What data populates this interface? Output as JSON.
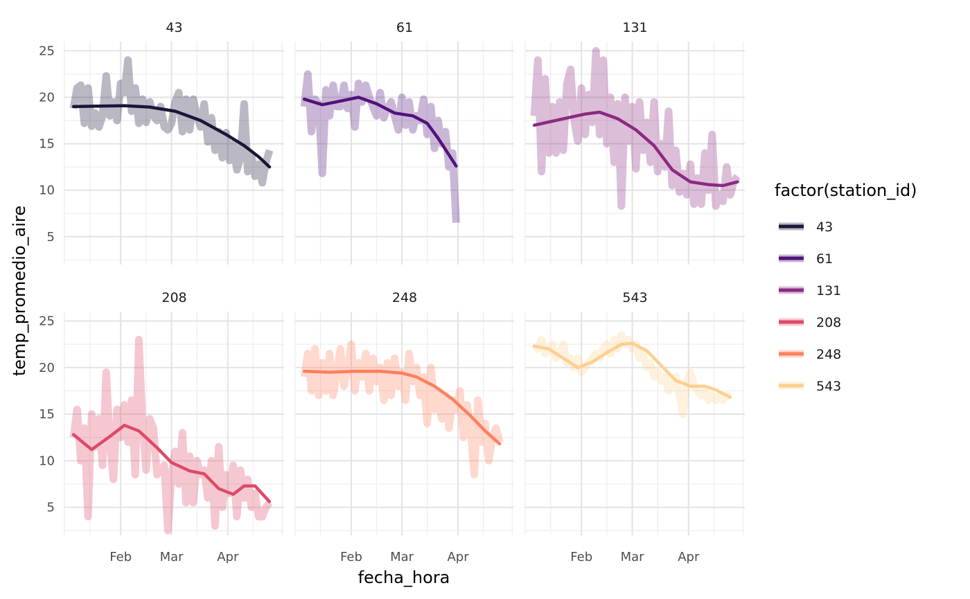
{
  "chart_data": {
    "type": "line",
    "xlabel": "fecha_hora",
    "ylabel": "temp_promedio_aire",
    "x_ticks": [
      "Feb",
      "Mar",
      "Apr"
    ],
    "y_ticks": [
      5,
      10,
      15,
      20,
      25
    ],
    "ylim": [
      2,
      26
    ],
    "grid": true,
    "legend": {
      "title": "factor(station_id)",
      "position": "right",
      "entries": [
        "43",
        "61",
        "131",
        "208",
        "248",
        "543"
      ]
    },
    "series": [
      {
        "name": "43",
        "color": "#1b1538",
        "x": [
          "2023-01-06",
          "2023-01-08",
          "2023-01-10",
          "2023-01-12",
          "2023-01-14",
          "2023-01-16",
          "2023-01-18",
          "2023-01-20",
          "2023-01-22",
          "2023-01-24",
          "2023-01-26",
          "2023-01-28",
          "2023-01-30",
          "2023-02-01",
          "2023-02-03",
          "2023-02-05",
          "2023-02-07",
          "2023-02-09",
          "2023-02-11",
          "2023-02-13",
          "2023-02-15",
          "2023-02-17",
          "2023-02-19",
          "2023-02-21",
          "2023-02-23",
          "2023-02-25",
          "2023-02-27",
          "2023-03-01",
          "2023-03-03",
          "2023-03-05",
          "2023-03-07",
          "2023-03-09",
          "2023-03-11",
          "2023-03-13",
          "2023-03-15",
          "2023-03-17",
          "2023-03-19",
          "2023-03-21",
          "2023-03-23",
          "2023-03-25",
          "2023-03-27",
          "2023-03-29",
          "2023-03-31",
          "2023-04-02",
          "2023-04-04",
          "2023-04-06",
          "2023-04-08",
          "2023-04-10",
          "2023-04-12",
          "2023-04-14",
          "2023-04-16",
          "2023-04-18",
          "2023-04-20",
          "2023-04-22",
          "2023-04-24"
        ],
        "values": [
          18.8,
          21.0,
          21.3,
          17.2,
          21.0,
          16.9,
          18.3,
          16.8,
          18.0,
          22.3,
          18.0,
          19.5,
          17.5,
          21.5,
          20.5,
          24.0,
          18.5,
          21.0,
          17.2,
          19.8,
          17.3,
          19.5,
          18.0,
          17.5,
          19.0,
          16.8,
          16.5,
          17.2,
          19.5,
          20.5,
          16.3,
          19.8,
          16.5,
          19.8,
          18.0,
          16.8,
          19.3,
          15.2,
          17.8,
          14.3,
          16.3,
          13.5,
          16.2,
          13.2,
          15.0,
          12.2,
          13.5,
          19.3,
          12.0,
          13.8,
          11.5,
          12.8,
          10.8,
          13.0,
          14.3
        ],
        "smooth_x": [
          "2023-01-06",
          "2023-01-20",
          "2023-02-03",
          "2023-02-17",
          "2023-03-03",
          "2023-03-17",
          "2023-03-31",
          "2023-04-10",
          "2023-04-18",
          "2023-04-24"
        ],
        "smooth_y": [
          19.0,
          19.05,
          19.1,
          18.95,
          18.5,
          17.5,
          16.0,
          14.8,
          13.6,
          12.5
        ]
      },
      {
        "name": "61",
        "color": "#51127c",
        "x": [
          "2023-01-06",
          "2023-01-08",
          "2023-01-10",
          "2023-01-12",
          "2023-01-14",
          "2023-01-16",
          "2023-01-18",
          "2023-01-20",
          "2023-01-22",
          "2023-01-24",
          "2023-01-26",
          "2023-01-28",
          "2023-01-30",
          "2023-02-01",
          "2023-02-03",
          "2023-02-05",
          "2023-02-07",
          "2023-02-09",
          "2023-02-11",
          "2023-02-13",
          "2023-02-15",
          "2023-02-17",
          "2023-02-19",
          "2023-02-21",
          "2023-02-23",
          "2023-02-25",
          "2023-02-27",
          "2023-03-01",
          "2023-03-03",
          "2023-03-05",
          "2023-03-07",
          "2023-03-09",
          "2023-03-11",
          "2023-03-13",
          "2023-03-15",
          "2023-03-17",
          "2023-03-19",
          "2023-03-21",
          "2023-03-23",
          "2023-03-25",
          "2023-03-27",
          "2023-03-29",
          "2023-03-31"
        ],
        "values": [
          19.0,
          22.5,
          16.3,
          19.8,
          19.3,
          11.8,
          20.8,
          18.0,
          21.3,
          19.0,
          19.0,
          21.3,
          18.8,
          20.3,
          16.8,
          21.5,
          19.5,
          21.3,
          20.0,
          19.0,
          18.0,
          20.5,
          17.8,
          18.8,
          19.5,
          18.0,
          16.5,
          20.0,
          17.0,
          19.5,
          16.5,
          18.0,
          17.5,
          19.8,
          16.0,
          19.0,
          14.5,
          17.5,
          15.0,
          16.3,
          12.5,
          14.0,
          6.5
        ],
        "smooth_x": [
          "2023-01-06",
          "2023-01-16",
          "2023-01-26",
          "2023-02-05",
          "2023-02-15",
          "2023-02-25",
          "2023-03-07",
          "2023-03-15",
          "2023-03-21",
          "2023-03-27",
          "2023-03-31"
        ],
        "smooth_y": [
          19.8,
          19.2,
          19.6,
          20.0,
          19.3,
          18.3,
          18.0,
          17.2,
          15.6,
          13.8,
          12.6
        ]
      },
      {
        "name": "131",
        "color": "#8c2981",
        "x": [
          "2023-01-06",
          "2023-01-08",
          "2023-01-10",
          "2023-01-12",
          "2023-01-14",
          "2023-01-16",
          "2023-01-18",
          "2023-01-20",
          "2023-01-22",
          "2023-01-24",
          "2023-01-26",
          "2023-01-28",
          "2023-01-30",
          "2023-02-01",
          "2023-02-03",
          "2023-02-05",
          "2023-02-07",
          "2023-02-09",
          "2023-02-11",
          "2023-02-13",
          "2023-02-15",
          "2023-02-17",
          "2023-02-19",
          "2023-02-21",
          "2023-02-23",
          "2023-02-25",
          "2023-02-27",
          "2023-03-01",
          "2023-03-03",
          "2023-03-05",
          "2023-03-07",
          "2023-03-09",
          "2023-03-11",
          "2023-03-13",
          "2023-03-15",
          "2023-03-17",
          "2023-03-19",
          "2023-03-21",
          "2023-03-23",
          "2023-03-25",
          "2023-03-27",
          "2023-03-29",
          "2023-03-31",
          "2023-04-02",
          "2023-04-04",
          "2023-04-06",
          "2023-04-08",
          "2023-04-10",
          "2023-04-12",
          "2023-04-14",
          "2023-04-16",
          "2023-04-18",
          "2023-04-20",
          "2023-04-22",
          "2023-04-24",
          "2023-04-26",
          "2023-04-28"
        ],
        "values": [
          18.0,
          24.0,
          12.0,
          22.0,
          14.0,
          19.0,
          14.0,
          19.5,
          14.3,
          21.5,
          23.0,
          17.5,
          15.3,
          21.0,
          16.0,
          20.3,
          17.3,
          25.0,
          16.0,
          24.0,
          15.0,
          20.0,
          13.0,
          19.3,
          8.3,
          20.0,
          15.3,
          19.0,
          12.3,
          19.5,
          14.3,
          17.3,
          13.0,
          19.5,
          12.0,
          15.0,
          12.5,
          18.5,
          10.5,
          14.3,
          9.8,
          11.8,
          9.5,
          12.8,
          8.5,
          11.3,
          8.5,
          14.0,
          10.0,
          16.0,
          8.3,
          9.5,
          8.8,
          12.5,
          9.5,
          11.0,
          11.5
        ],
        "smooth_x": [
          "2023-01-06",
          "2023-01-20",
          "2023-02-03",
          "2023-02-11",
          "2023-02-21",
          "2023-03-03",
          "2023-03-13",
          "2023-03-23",
          "2023-04-02",
          "2023-04-12",
          "2023-04-20",
          "2023-04-28"
        ],
        "smooth_y": [
          17.0,
          17.6,
          18.2,
          18.4,
          17.7,
          16.5,
          14.8,
          12.2,
          10.9,
          10.6,
          10.5,
          10.9
        ]
      },
      {
        "name": "208",
        "color": "#de4968",
        "x": [
          "2023-01-06",
          "2023-01-08",
          "2023-01-10",
          "2023-01-12",
          "2023-01-14",
          "2023-01-16",
          "2023-01-18",
          "2023-01-20",
          "2023-01-22",
          "2023-01-24",
          "2023-01-26",
          "2023-01-28",
          "2023-01-30",
          "2023-02-01",
          "2023-02-03",
          "2023-02-05",
          "2023-02-07",
          "2023-02-09",
          "2023-02-11",
          "2023-02-13",
          "2023-02-15",
          "2023-02-17",
          "2023-02-19",
          "2023-02-21",
          "2023-02-23",
          "2023-02-25",
          "2023-02-27",
          "2023-03-01",
          "2023-03-03",
          "2023-03-05",
          "2023-03-07",
          "2023-03-09",
          "2023-03-11",
          "2023-03-13",
          "2023-03-15",
          "2023-03-17",
          "2023-03-19",
          "2023-03-21",
          "2023-03-23",
          "2023-03-25",
          "2023-03-27",
          "2023-03-29",
          "2023-03-31",
          "2023-04-02",
          "2023-04-04",
          "2023-04-06",
          "2023-04-08",
          "2023-04-10",
          "2023-04-12",
          "2023-04-14",
          "2023-04-16",
          "2023-04-18",
          "2023-04-20",
          "2023-04-22",
          "2023-04-24"
        ],
        "values": [
          12.5,
          15.5,
          10.0,
          13.5,
          4.0,
          15.0,
          11.5,
          14.5,
          9.5,
          19.5,
          12.0,
          8.0,
          15.5,
          12.5,
          16.0,
          12.0,
          16.5,
          8.5,
          23.0,
          14.0,
          9.0,
          14.5,
          13.5,
          8.5,
          9.0,
          9.5,
          2.5,
          8.5,
          11.0,
          7.5,
          13.0,
          5.5,
          10.5,
          5.5,
          10.0,
          8.5,
          9.0,
          6.0,
          10.0,
          3.0,
          11.5,
          5.0,
          8.5,
          6.5,
          9.5,
          4.0,
          9.0,
          6.0,
          8.0,
          5.0,
          6.5,
          4.0,
          4.0,
          5.0,
          5.5
        ],
        "smooth_x": [
          "2023-01-06",
          "2023-01-16",
          "2023-01-26",
          "2023-02-03",
          "2023-02-11",
          "2023-02-21",
          "2023-03-01",
          "2023-03-11",
          "2023-03-19",
          "2023-03-27",
          "2023-04-04",
          "2023-04-10",
          "2023-04-16",
          "2023-04-24"
        ],
        "smooth_y": [
          12.8,
          11.2,
          12.6,
          13.8,
          13.2,
          11.4,
          9.8,
          8.9,
          8.6,
          7.0,
          6.4,
          7.3,
          7.3,
          5.6
        ]
      },
      {
        "name": "248",
        "color": "#fe7f5e",
        "x": [
          "2023-01-06",
          "2023-01-08",
          "2023-01-10",
          "2023-01-12",
          "2023-01-14",
          "2023-01-16",
          "2023-01-18",
          "2023-01-20",
          "2023-01-22",
          "2023-01-24",
          "2023-01-26",
          "2023-01-28",
          "2023-01-30",
          "2023-02-01",
          "2023-02-03",
          "2023-02-05",
          "2023-02-07",
          "2023-02-09",
          "2023-02-11",
          "2023-02-13",
          "2023-02-15",
          "2023-02-17",
          "2023-02-19",
          "2023-02-21",
          "2023-02-23",
          "2023-02-25",
          "2023-02-27",
          "2023-03-01",
          "2023-03-03",
          "2023-03-05",
          "2023-03-07",
          "2023-03-09",
          "2023-03-11",
          "2023-03-13",
          "2023-03-15",
          "2023-03-17",
          "2023-03-19",
          "2023-03-21",
          "2023-03-23",
          "2023-03-25",
          "2023-03-27",
          "2023-03-29",
          "2023-03-31",
          "2023-04-02",
          "2023-04-04",
          "2023-04-06",
          "2023-04-08",
          "2023-04-10",
          "2023-04-12",
          "2023-04-14",
          "2023-04-16",
          "2023-04-18",
          "2023-04-20",
          "2023-04-22",
          "2023-04-24"
        ],
        "values": [
          19.0,
          21.5,
          17.5,
          22.0,
          17.0,
          20.5,
          17.5,
          21.5,
          17.0,
          19.5,
          22.0,
          18.0,
          20.0,
          22.5,
          17.5,
          20.5,
          19.0,
          21.5,
          17.5,
          21.0,
          18.5,
          20.0,
          16.5,
          20.5,
          17.0,
          21.0,
          18.0,
          19.5,
          16.5,
          21.5,
          18.5,
          20.0,
          17.0,
          19.0,
          14.0,
          20.0,
          15.5,
          17.5,
          14.5,
          17.0,
          13.5,
          16.5,
          15.5,
          17.5,
          12.5,
          16.0,
          13.5,
          8.5,
          16.5,
          12.0,
          14.0,
          10.0,
          12.5,
          13.5,
          12.0
        ],
        "smooth_x": [
          "2023-01-06",
          "2023-01-20",
          "2023-02-03",
          "2023-02-17",
          "2023-03-01",
          "2023-03-09",
          "2023-03-19",
          "2023-03-29",
          "2023-04-08",
          "2023-04-16",
          "2023-04-24"
        ],
        "smooth_y": [
          19.6,
          19.5,
          19.6,
          19.6,
          19.4,
          19.0,
          18.0,
          16.6,
          14.8,
          13.2,
          11.8
        ]
      },
      {
        "name": "543",
        "color": "#fdcf8e",
        "x": [
          "2023-01-06",
          "2023-01-08",
          "2023-01-10",
          "2023-01-12",
          "2023-01-14",
          "2023-01-16",
          "2023-01-18",
          "2023-01-20",
          "2023-01-22",
          "2023-01-24",
          "2023-01-26",
          "2023-01-28",
          "2023-01-30",
          "2023-02-01",
          "2023-02-03",
          "2023-02-05",
          "2023-02-07",
          "2023-02-09",
          "2023-02-11",
          "2023-02-13",
          "2023-02-15",
          "2023-02-17",
          "2023-02-19",
          "2023-02-21",
          "2023-02-23",
          "2023-02-25",
          "2023-02-27",
          "2023-03-01",
          "2023-03-03",
          "2023-03-05",
          "2023-03-07",
          "2023-03-09",
          "2023-03-11",
          "2023-03-13",
          "2023-03-15",
          "2023-03-17",
          "2023-03-19",
          "2023-03-21",
          "2023-03-23",
          "2023-03-25",
          "2023-03-27",
          "2023-03-29",
          "2023-03-31",
          "2023-04-02",
          "2023-04-04",
          "2023-04-06",
          "2023-04-08",
          "2023-04-10",
          "2023-04-12",
          "2023-04-14",
          "2023-04-16",
          "2023-04-18",
          "2023-04-20",
          "2023-04-22",
          "2023-04-24"
        ],
        "values": [
          22.5,
          22.0,
          23.0,
          21.5,
          22.0,
          22.5,
          21.0,
          21.5,
          22.5,
          20.5,
          21.0,
          20.0,
          21.0,
          19.5,
          20.0,
          20.5,
          21.0,
          21.5,
          21.0,
          22.0,
          22.5,
          21.5,
          23.0,
          22.0,
          23.5,
          22.5,
          23.0,
          22.0,
          22.5,
          21.0,
          21.5,
          20.0,
          20.5,
          19.0,
          19.5,
          18.5,
          19.0,
          17.5,
          18.0,
          19.0,
          17.0,
          15.0,
          18.5,
          19.5,
          18.0,
          17.5,
          17.0,
          17.5,
          16.5,
          17.0,
          16.5,
          17.0,
          16.5,
          17.0,
          16.8
        ],
        "smooth_x": [
          "2023-01-06",
          "2023-01-14",
          "2023-01-22",
          "2023-01-30",
          "2023-02-07",
          "2023-02-15",
          "2023-02-23",
          "2023-03-01",
          "2023-03-09",
          "2023-03-17",
          "2023-03-25",
          "2023-04-02",
          "2023-04-10",
          "2023-04-16",
          "2023-04-24"
        ],
        "smooth_y": [
          22.3,
          22.0,
          21.0,
          20.0,
          20.6,
          21.6,
          22.5,
          22.6,
          21.8,
          20.2,
          18.6,
          18.0,
          18.0,
          17.6,
          16.8
        ]
      }
    ]
  }
}
